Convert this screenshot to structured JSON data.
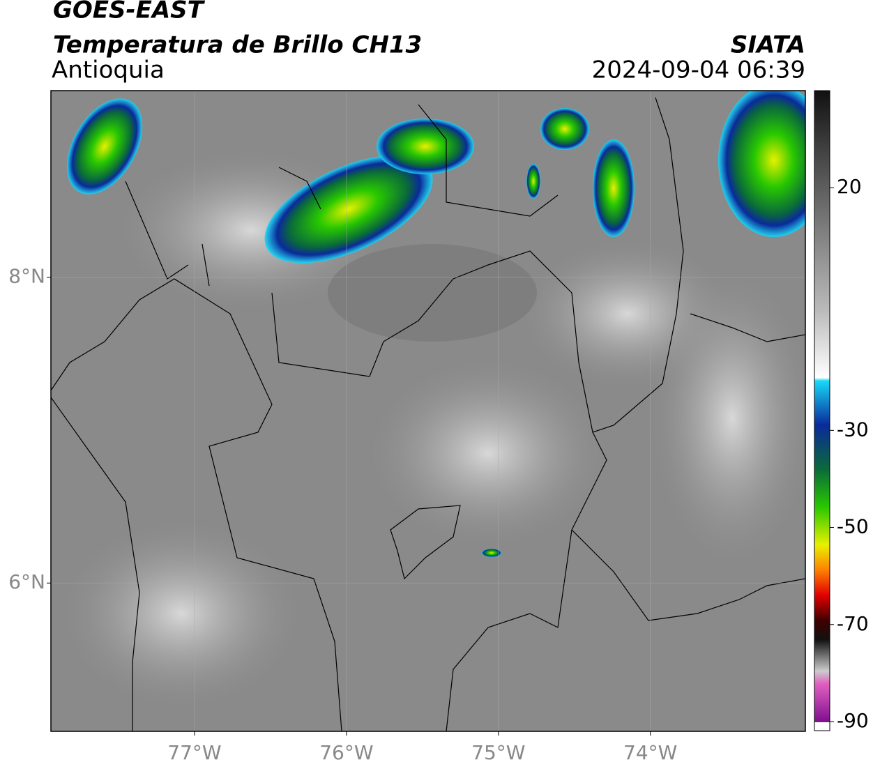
{
  "header": {
    "satellite": "GOES-EAST",
    "product": "Temperatura de Brillo CH13",
    "region": "Antioquia",
    "source": "SIATA",
    "datetime": "2024-09-04 06:39"
  },
  "map": {
    "xlim": [
      -77.945,
      -72.98
    ],
    "ylim": [
      5.03,
      9.22
    ],
    "xticks": [
      {
        "value": -77,
        "label": "77°W"
      },
      {
        "value": -76,
        "label": "76°W"
      },
      {
        "value": -75,
        "label": "75°W"
      },
      {
        "value": -74,
        "label": "74°W"
      }
    ],
    "yticks": [
      {
        "value": 8,
        "label": "8°N"
      },
      {
        "value": 6,
        "label": "6°N"
      }
    ],
    "grid": true
  },
  "colorbar": {
    "lim": [
      -90,
      40
    ],
    "ticks": [
      20,
      -30,
      -50,
      -70,
      -90
    ]
  }
}
